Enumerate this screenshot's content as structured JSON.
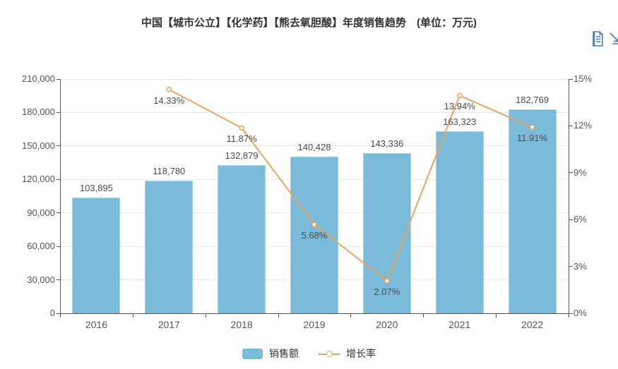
{
  "title": "中国【城市公立】【化学药】【熊去氧胆酸】年度销售趋势　(单位：万元)",
  "toolbox": {
    "icons": [
      {
        "name": "data-view-icon"
      },
      {
        "name": "save-image-icon"
      }
    ]
  },
  "legend": {
    "position": "bottom",
    "items": [
      {
        "label": "销售额",
        "marker": "bar-swatch"
      },
      {
        "label": "增长率",
        "marker": "line-marker"
      }
    ]
  },
  "colors": {
    "bar": "#7ABBD9",
    "bar_border": "#A6D3E8",
    "line": "#E9A45F",
    "marker_fill": "#FFFFFF",
    "grid": "#E6E6E6",
    "axis": "#555555",
    "axis_text": "#555555",
    "data_label": "#4A4A4A",
    "title": "#333333",
    "toolbox": "#4A7EB0"
  },
  "chart_data": {
    "type": "bar+line",
    "title": "中国【城市公立】【化学药】【熊去氧胆酸】年度销售趋势　(单位：万元)",
    "categories": [
      "2016",
      "2017",
      "2018",
      "2019",
      "2020",
      "2021",
      "2022"
    ],
    "series": [
      {
        "name": "销售额",
        "type": "bar",
        "yaxis": "left",
        "values": [
          103895,
          118780,
          132879,
          140428,
          143336,
          163323,
          182769
        ],
        "labels": [
          "103,895",
          "118,780",
          "132,879",
          "140,428",
          "143,336",
          "163,323",
          "182,769"
        ]
      },
      {
        "name": "增长率",
        "type": "line",
        "yaxis": "right",
        "values": [
          null,
          14.33,
          11.87,
          5.68,
          2.07,
          13.94,
          11.91
        ],
        "labels": [
          null,
          "14.33%",
          "11.87%",
          "5.68%",
          "2.07%",
          "13.94%",
          "11.91%"
        ]
      }
    ],
    "y_left": {
      "min": 0,
      "max": 210000,
      "tick_step": 30000,
      "ticks": [
        "0",
        "30,000",
        "60,000",
        "90,000",
        "120,000",
        "150,000",
        "180,000",
        "210,000"
      ]
    },
    "y_right": {
      "min": 0,
      "max": 15,
      "tick_step": 3,
      "ticks": [
        "0%",
        "3%",
        "6%",
        "9%",
        "12%",
        "15%"
      ]
    },
    "grid": true,
    "legend_position": "bottom"
  }
}
